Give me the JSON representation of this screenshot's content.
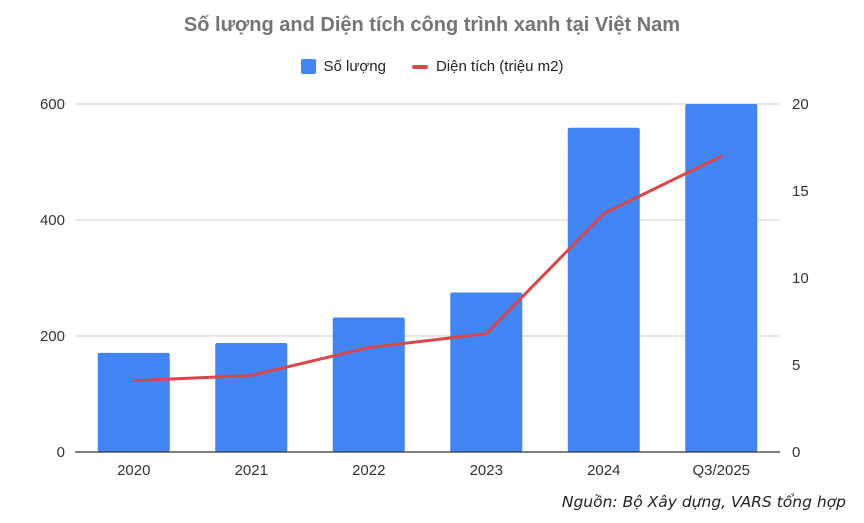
{
  "chart_data": {
    "type": "bar+line",
    "title": "Số lượng and Diện tích công trình xanh tại Việt Nam",
    "categories": [
      "2020",
      "2021",
      "2022",
      "2023",
      "2024",
      "Q3/2025"
    ],
    "series": [
      {
        "name": "Số lượng",
        "type": "bar",
        "axis": "left",
        "color": "#4285F4",
        "values": [
          171,
          188,
          232,
          275,
          559,
          600
        ]
      },
      {
        "name": "Diện tích (triệu m2)",
        "type": "line",
        "axis": "right",
        "color": "#D9474A",
        "values": [
          4.1,
          4.4,
          6.0,
          6.8,
          13.7,
          17.0
        ]
      }
    ],
    "left_axis": {
      "ylim": [
        0,
        600
      ],
      "ticks": [
        0,
        200,
        400,
        600
      ]
    },
    "right_axis": {
      "ylim": [
        0,
        20
      ],
      "ticks": [
        0,
        5,
        10,
        15,
        20
      ]
    },
    "xlabel": "",
    "ylabel": "",
    "grid": true,
    "legend_position": "top"
  },
  "legend": {
    "bar_label": "Số lượng",
    "line_label": "Diện tích (triệu m2)"
  },
  "source": "Nguồn: Bộ Xây dựng, VARS tổng hợp"
}
